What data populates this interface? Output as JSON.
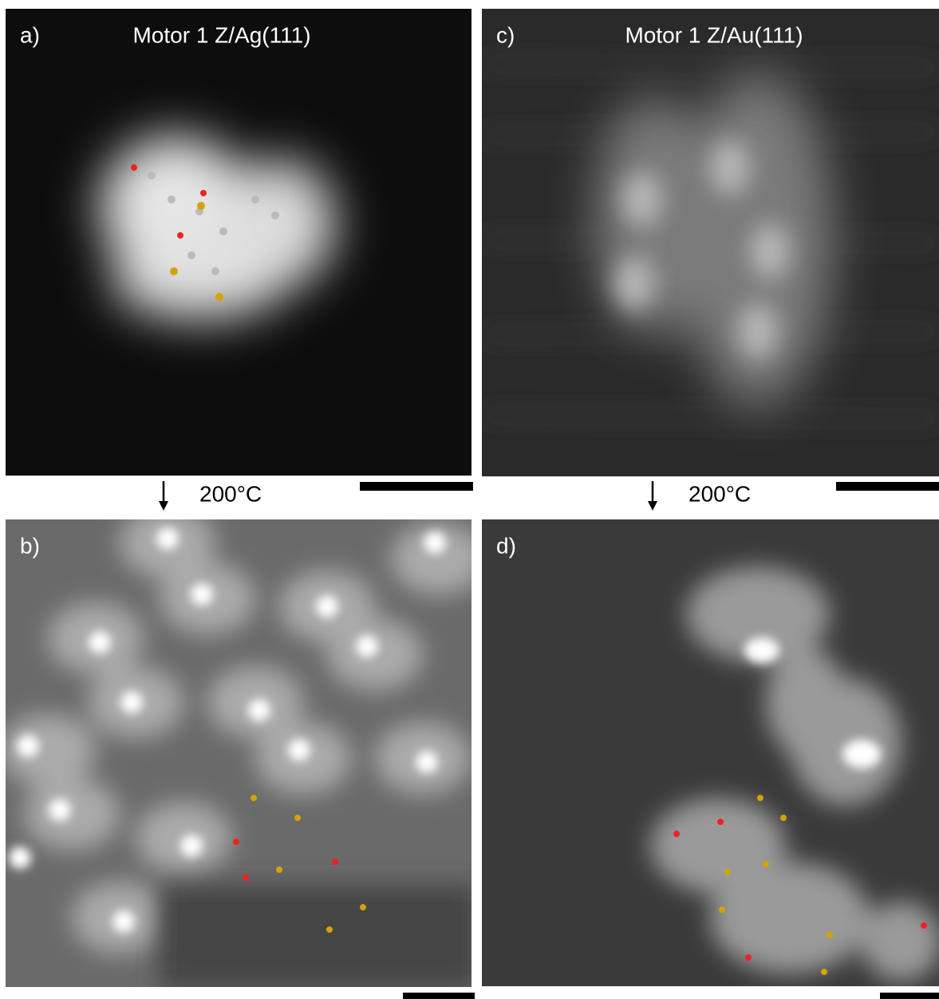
{
  "panels": [
    {
      "label": "a)",
      "title": "Motor 1 Z/Ag(111)"
    },
    {
      "label": "b)"
    },
    {
      "label": "c)",
      "title": "Motor 1 Z/Au(111)"
    },
    {
      "label": "d)"
    }
  ],
  "steps": [
    {
      "label": "200°C"
    },
    {
      "label": "200°C"
    }
  ]
}
